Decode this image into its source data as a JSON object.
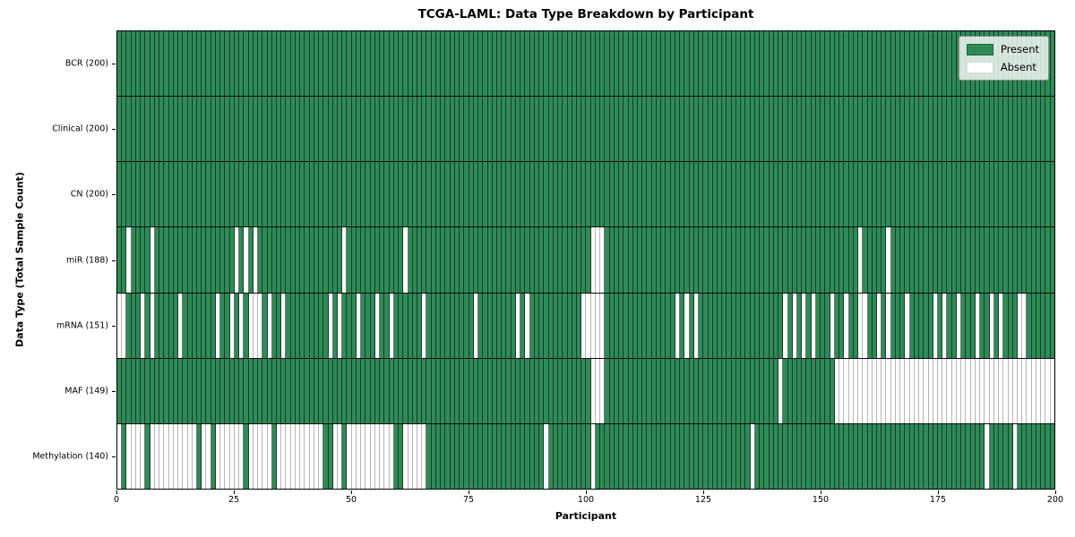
{
  "chart_data": {
    "type": "heatmap",
    "title": "TCGA-LAML: Data Type Breakdown by Participant",
    "xlabel": "Participant",
    "ylabel": "Data Type (Total Sample Count)",
    "n_participants": 200,
    "x_range": [
      0,
      200
    ],
    "x_ticks": [
      0,
      25,
      50,
      75,
      100,
      125,
      150,
      175,
      200
    ],
    "legend_labels": [
      "Present",
      "Absent"
    ],
    "colors": {
      "present": "#2e8b57",
      "absent": "#ffffff"
    },
    "legend_position": "upper right",
    "grid": false,
    "rows": [
      {
        "name": "BCR",
        "label": "BCR (200)",
        "present_count": 200,
        "absent_participants": []
      },
      {
        "name": "Clinical",
        "label": "Clinical (200)",
        "present_count": 200,
        "absent_participants": []
      },
      {
        "name": "CN",
        "label": "CN (200)",
        "present_count": 200,
        "absent_participants": []
      },
      {
        "name": "miR",
        "label": "miR (188)",
        "present_count": 188,
        "absent_participants": [
          2,
          7,
          25,
          27,
          29,
          48,
          61,
          101,
          102,
          103,
          158,
          164
        ]
      },
      {
        "name": "mRNA",
        "label": "mRNA (151)",
        "present_count": 151,
        "absent_participants": [
          0,
          1,
          5,
          7,
          13,
          21,
          24,
          26,
          28,
          29,
          30,
          32,
          35,
          45,
          47,
          51,
          55,
          58,
          65,
          76,
          85,
          87,
          99,
          100,
          101,
          102,
          103,
          119,
          121,
          123,
          142,
          144,
          146,
          148,
          152,
          155,
          158,
          159,
          162,
          164,
          168,
          174,
          176,
          179,
          183,
          186,
          188,
          192,
          193
        ]
      },
      {
        "name": "MAF",
        "label": "MAF (149)",
        "present_count": 149,
        "absent_participants": [
          101,
          102,
          103,
          141,
          153,
          154,
          155,
          156,
          157,
          158,
          159,
          160,
          161,
          162,
          163,
          164,
          165,
          166,
          167,
          168,
          169,
          170,
          171,
          172,
          173,
          174,
          175,
          176,
          177,
          178,
          179,
          180,
          181,
          182,
          183,
          184,
          185,
          186,
          187,
          188,
          189,
          190,
          191,
          192,
          193,
          194,
          195,
          196,
          197,
          198,
          199
        ]
      },
      {
        "name": "Methylation",
        "label": "Methylation (140)",
        "present_count": 140,
        "absent_participants": [
          0,
          2,
          3,
          4,
          5,
          7,
          8,
          9,
          10,
          11,
          12,
          13,
          14,
          15,
          16,
          18,
          19,
          21,
          22,
          23,
          24,
          25,
          26,
          28,
          29,
          30,
          31,
          32,
          34,
          35,
          36,
          37,
          38,
          39,
          40,
          41,
          42,
          43,
          46,
          47,
          49,
          50,
          51,
          52,
          53,
          54,
          55,
          56,
          57,
          58,
          61,
          62,
          63,
          64,
          65,
          91,
          101,
          135,
          185,
          191
        ]
      }
    ]
  }
}
